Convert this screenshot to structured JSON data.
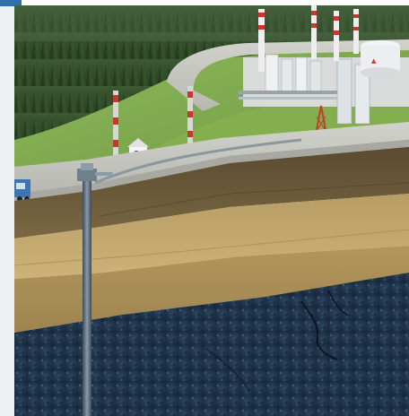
{
  "image": {
    "alt": "",
    "colors": {
      "forest_dark": "#2f4a2c",
      "grass": "#7fa84e",
      "road": "#c7c7c2",
      "concrete": "#d6d6d2",
      "topsoil": "#6b5a3b",
      "sand_layer": "#c2a76b",
      "clay_layer": "#a88d55",
      "dark_reservoir": "#20344a",
      "pipe": "#5d6e7c",
      "tower_red": "#c53a2c",
      "tank_white": "#eef0f2",
      "accent_tab": "#2f6fae"
    }
  }
}
